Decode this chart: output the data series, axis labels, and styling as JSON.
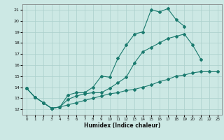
{
  "xlabel": "Humidex (Indice chaleur)",
  "bg_color": "#cce8e4",
  "grid_color": "#aacfcb",
  "line_color": "#1a7a6e",
  "xlim": [
    -0.5,
    23.5
  ],
  "ylim": [
    11.5,
    21.5
  ],
  "xticks": [
    0,
    1,
    2,
    3,
    4,
    5,
    6,
    7,
    8,
    9,
    10,
    11,
    12,
    13,
    14,
    15,
    16,
    17,
    18,
    19,
    20,
    21,
    22,
    23
  ],
  "yticks": [
    12,
    13,
    14,
    15,
    16,
    17,
    18,
    19,
    20,
    21
  ],
  "line1_x": [
    0,
    1,
    2,
    3,
    4,
    5,
    6,
    7,
    8,
    9,
    10,
    11,
    12,
    13,
    14,
    15,
    16,
    17,
    18,
    19
  ],
  "line1_y": [
    13.9,
    13.1,
    12.6,
    12.1,
    12.2,
    13.3,
    13.5,
    13.5,
    14.0,
    15.0,
    14.9,
    16.6,
    17.8,
    18.8,
    19.0,
    21.0,
    20.8,
    21.1,
    20.1,
    19.5
  ],
  "line2_x": [
    0,
    1,
    2,
    3,
    4,
    5,
    6,
    7,
    8,
    9,
    10,
    11,
    12,
    13,
    14,
    15,
    16,
    17,
    18,
    19,
    20,
    21
  ],
  "line2_y": [
    13.9,
    13.1,
    12.6,
    12.1,
    12.2,
    12.9,
    13.2,
    13.4,
    13.5,
    13.5,
    13.9,
    14.4,
    14.9,
    16.2,
    17.2,
    17.6,
    18.0,
    18.4,
    18.6,
    18.8,
    17.8,
    16.5
  ],
  "line3_x": [
    0,
    1,
    2,
    3,
    4,
    5,
    6,
    7,
    8,
    9,
    10,
    11,
    12,
    13,
    14,
    15,
    16,
    17,
    18,
    19,
    20,
    21,
    22,
    23
  ],
  "line3_y": [
    13.9,
    13.1,
    12.6,
    12.1,
    12.2,
    12.4,
    12.6,
    12.8,
    13.0,
    13.2,
    13.4,
    13.5,
    13.7,
    13.8,
    14.0,
    14.2,
    14.5,
    14.7,
    15.0,
    15.1,
    15.3,
    15.4,
    15.4,
    15.4
  ]
}
